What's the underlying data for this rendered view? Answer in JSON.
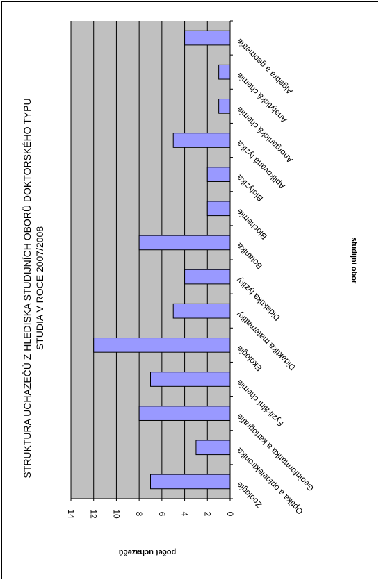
{
  "chart_data": {
    "type": "bar",
    "orientation": "rotated-90",
    "title": "STRUKTURA UCHAZEČŮ Z HLEDISKA STUDIJNÍCH OBORŮ DOKTORSKÉHO TYPU STUDIA V ROCE 2007/2008",
    "title_lines": [
      "STRUKTURA UCHAZEČŮ Z HLEDISKA STUDIJNÍCH OBORŮ DOKTORSKÉHO TYPU",
      "STUDIA V ROCE 2007/2008"
    ],
    "xlabel": "studijní obor",
    "ylabel": "počet uchazečů",
    "categories": [
      "Algebra a geometrie",
      "Analytická chemie",
      "Anorganická chemie",
      "Aplikovaná fyzika",
      "Biofyzika",
      "Biochemie",
      "Botanika",
      "Didaktika fyziky",
      "Didaktika matematiky",
      "Ekologie",
      "Fyzikální chemie",
      "Geoinformatika a kartografie",
      "Optika a optoelektronika",
      "Zoologie"
    ],
    "values": [
      4,
      1,
      1,
      5,
      2,
      2,
      8,
      4,
      5,
      12,
      7,
      8,
      3,
      7
    ],
    "yticks": [
      0,
      2,
      4,
      6,
      8,
      10,
      12,
      14
    ],
    "ylim": [
      0,
      14
    ],
    "grid": true,
    "legend": "none",
    "colors": {
      "bar_fill": "#9999ff",
      "bar_stroke": "#000000",
      "plot_bg": "#c0c0c0",
      "grid": "#000000"
    }
  }
}
